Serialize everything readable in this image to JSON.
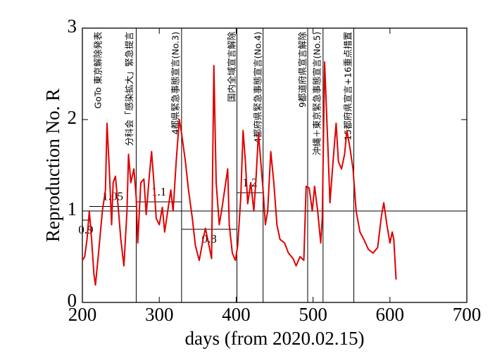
{
  "chart_data": {
    "type": "line",
    "xlabel": "days   (from 2020.02.15)",
    "ylabel": "Reproduction No.  R",
    "xlim": [
      200,
      700
    ],
    "ylim": [
      0,
      3
    ],
    "xticks": [
      200,
      300,
      400,
      500,
      600,
      700
    ],
    "yticks": [
      0,
      1,
      2,
      3
    ],
    "color": "#e00000",
    "x": [
      200,
      203,
      206,
      209,
      212,
      215,
      217,
      221,
      226,
      230,
      232,
      235,
      238,
      240,
      243,
      247,
      250,
      254,
      258,
      260,
      263,
      267,
      270,
      272,
      276,
      280,
      283,
      287,
      290,
      293,
      296,
      300,
      304,
      307,
      311,
      315,
      318,
      322,
      326,
      329,
      334,
      338,
      343,
      347,
      352,
      357,
      360,
      364,
      368,
      371,
      374,
      378,
      381,
      385,
      389,
      391,
      395,
      399,
      402,
      406,
      409,
      412,
      415,
      419,
      423,
      426,
      429,
      432,
      435,
      438,
      441,
      445,
      449,
      453,
      457,
      463,
      468,
      474,
      478,
      483,
      488,
      491,
      495,
      499,
      502,
      506,
      510,
      512,
      515,
      519,
      522,
      526,
      530,
      533,
      537,
      541,
      544,
      548,
      552,
      556,
      561,
      566,
      572,
      578,
      584,
      589,
      592,
      596,
      600,
      603,
      605,
      608
    ],
    "values": [
      0.46,
      0.5,
      0.69,
      1.0,
      0.69,
      0.31,
      0.19,
      0.54,
      1.0,
      1.23,
      1.96,
      1.46,
      0.85,
      1.31,
      1.38,
      1.0,
      0.69,
      0.4,
      1.0,
      1.62,
      1.31,
      1.46,
      1.15,
      0.65,
      1.31,
      1.35,
      0.96,
      1.38,
      1.65,
      1.31,
      0.92,
      0.85,
      1.04,
      0.77,
      1.0,
      1.23,
      1.0,
      1.54,
      2.0,
      1.85,
      1.54,
      1.23,
      0.92,
      0.62,
      0.46,
      0.69,
      0.81,
      0.65,
      0.48,
      2.59,
      1.31,
      0.85,
      1.0,
      1.23,
      1.46,
      0.85,
      0.54,
      0.46,
      0.62,
      1.15,
      1.88,
      1.54,
      1.08,
      1.31,
      1.0,
      1.38,
      1.85,
      1.54,
      1.23,
      0.85,
      1.0,
      1.65,
      1.31,
      0.85,
      0.69,
      0.65,
      0.54,
      0.48,
      0.4,
      0.5,
      0.46,
      1.27,
      1.25,
      1.0,
      1.27,
      1.0,
      0.65,
      0.92,
      2.63,
      1.77,
      1.09,
      1.54,
      1.96,
      1.54,
      1.46,
      1.62,
      1.88,
      1.69,
      1.46,
      1.0,
      0.77,
      0.69,
      0.58,
      0.54,
      0.6,
      0.95,
      1.09,
      0.85,
      0.65,
      0.77,
      0.69,
      0.25
    ],
    "hline": 1,
    "vlines": [
      270,
      329,
      401,
      435,
      493,
      513,
      553
    ],
    "periods": [
      {
        "start": 200,
        "end": 209,
        "value": 0.9
      },
      {
        "start": 209,
        "end": 270,
        "value": 1.05
      },
      {
        "start": 270,
        "end": 329,
        "value": 1.1
      },
      {
        "start": 329,
        "end": 401,
        "value": 0.8
      },
      {
        "start": 401,
        "end": 435,
        "value": 1.2
      }
    ],
    "annotations": [
      {
        "x": 221,
        "text": "GoTo 東京解除発表"
      },
      {
        "x": 262,
        "text": "分科会「感染拡大」緊急提言"
      },
      {
        "x": 322,
        "text": "4都県緊急事態宣言(No.3)"
      },
      {
        "x": 395,
        "text": "国内全域宣言解除"
      },
      {
        "x": 429,
        "text": "4都府県緊急事態宣言(No.4)"
      },
      {
        "x": 487,
        "text": "9都道府県宣言解除"
      },
      {
        "x": 506,
        "text": "沖縄＋東京緊急事態宣言(No.5)"
      },
      {
        "x": 546,
        "text": "15都府県宣言+16重点措置"
      }
    ]
  }
}
